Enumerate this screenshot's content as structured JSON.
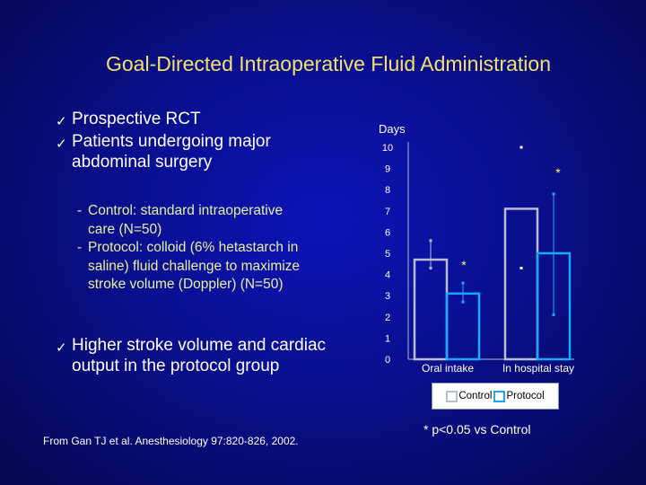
{
  "slide": {
    "title": "Goal-Directed Intraoperative Fluid Administration",
    "bullets": [
      "Prospective RCT",
      "Patients undergoing major",
      "abdominal surgery"
    ],
    "sub_items": [
      [
        "Control: standard intraoperative",
        "care (N=50)"
      ],
      [
        "Protocol: colloid (6% hetastarch in",
        "saline) fluid challenge to maximize",
        "stroke volume (Doppler) (N=50)"
      ]
    ],
    "bullet_bottom": [
      "Higher stroke volume and cardiac",
      "output in the protocol group"
    ],
    "citation": "From Gan TJ et al. Anesthesiology 97:820-826, 2002.",
    "check_glyph": "✓",
    "dash_glyph": "-",
    "footnote_star": "*",
    "footnote_text": "p<0.05 vs Control"
  },
  "chart_data": {
    "type": "bar",
    "ylabel": "Days",
    "ylim": [
      0,
      10
    ],
    "yticks": [
      "0",
      "1",
      "2",
      "3",
      "4",
      "5",
      "6",
      "7",
      "8",
      "9",
      "10"
    ],
    "categories": [
      "Oral intake",
      "In hospital stay"
    ],
    "series": [
      {
        "name": "Control",
        "color": "#b8bdd0",
        "values": [
          4.7,
          7.1
        ],
        "error_upper": [
          5.6,
          null
        ],
        "error_lower": [
          4.3,
          null
        ],
        "error_points": [
          null,
          10.0
        ]
      },
      {
        "name": "Protocol",
        "color": "#1aa8ff",
        "values": [
          3.1,
          5.0
        ],
        "error_upper": [
          3.6,
          7.8
        ],
        "error_lower": [
          2.7,
          2.1
        ],
        "error_points": [
          null,
          null
        ]
      }
    ],
    "significance": [
      {
        "category": "Oral intake",
        "label": "*"
      },
      {
        "category": "In hospital stay",
        "label": "*"
      }
    ],
    "extra_points": [
      {
        "category": "In hospital stay",
        "series": "Control",
        "value": 4.3
      }
    ],
    "legend_position": "bottom"
  }
}
